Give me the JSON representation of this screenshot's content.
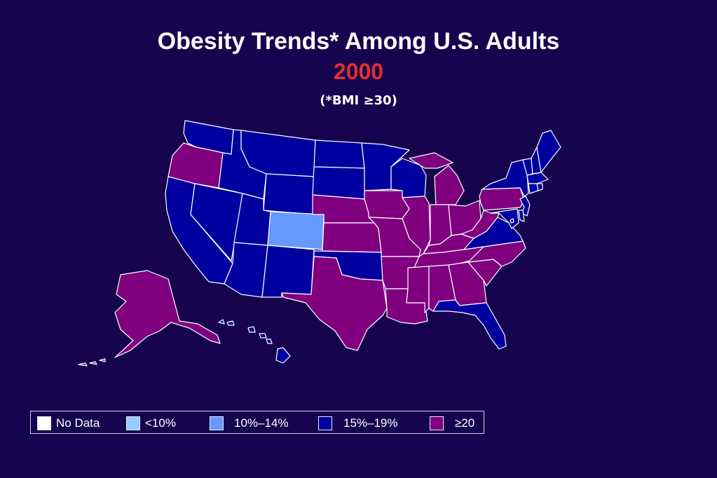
{
  "title": "Obesity Trends* Among U.S. Adults",
  "year": "2000",
  "subtitle": "(*BMI ≥30)",
  "colors": {
    "background": "#16054e",
    "no_data": "#ffffff",
    "lt10": "#99ccff",
    "10_14": "#6699ff",
    "15_19": "#0000a0",
    "ge20": "#800080",
    "year_text": "#e0302c"
  },
  "legend": [
    {
      "label": "No Data",
      "category": "no_data"
    },
    {
      "label": "<10%",
      "category": "lt10"
    },
    {
      "label": "10%–14%",
      "category": "10_14"
    },
    {
      "label": "15%–19%",
      "category": "15_19"
    },
    {
      "label": "≥20",
      "category": "ge20"
    }
  ],
  "states": {
    "WA": "15_19",
    "OR": "ge20",
    "CA": "15_19",
    "NV": "15_19",
    "ID": "15_19",
    "MT": "15_19",
    "WY": "15_19",
    "UT": "15_19",
    "AZ": "15_19",
    "CO": "10_14",
    "NM": "15_19",
    "ND": "15_19",
    "SD": "15_19",
    "NE": "ge20",
    "KS": "ge20",
    "OK": "15_19",
    "TX": "ge20",
    "MN": "15_19",
    "IA": "ge20",
    "MO": "ge20",
    "AR": "ge20",
    "LA": "ge20",
    "WI": "15_19",
    "IL": "ge20",
    "MI": "ge20",
    "IN": "ge20",
    "OH": "ge20",
    "KY": "ge20",
    "TN": "ge20",
    "MS": "ge20",
    "AL": "ge20",
    "GA": "ge20",
    "FL": "15_19",
    "SC": "ge20",
    "NC": "ge20",
    "VA": "15_19",
    "WV": "ge20",
    "PA": "ge20",
    "NY": "15_19",
    "VT": "15_19",
    "NH": "15_19",
    "ME": "15_19",
    "MA": "15_19",
    "RI": "15_19",
    "CT": "15_19",
    "NJ": "15_19",
    "DE": "15_19",
    "MD": "15_19",
    "DC": "15_19",
    "AK": "ge20",
    "HI": "15_19"
  }
}
